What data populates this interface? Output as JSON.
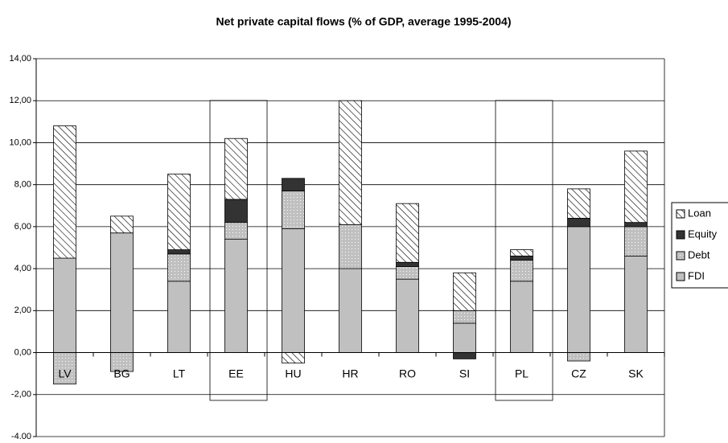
{
  "chart_data": {
    "type": "stacked_bar",
    "title": "Net private capital flows (% of GDP, average 1995-2004)",
    "categories": [
      "LV",
      "BG",
      "LT",
      "EE",
      "HU",
      "HR",
      "RO",
      "SI",
      "PL",
      "CZ",
      "SK"
    ],
    "series": [
      {
        "name": "FDI",
        "color": "#c0c0c0",
        "pattern": "solid",
        "values": [
          4.5,
          5.7,
          3.4,
          5.4,
          5.9,
          4.0,
          3.5,
          1.4,
          3.4,
          6.0,
          4.6
        ]
      },
      {
        "name": "Debt",
        "color": "#c0c0c0",
        "pattern": "dots",
        "values": [
          -1.5,
          -0.9,
          1.3,
          0.8,
          1.8,
          2.1,
          0.6,
          0.6,
          1.0,
          -0.4,
          1.4
        ]
      },
      {
        "name": "Equity",
        "color": "#333333",
        "pattern": "solid",
        "values": [
          0,
          0,
          0.2,
          1.1,
          0.6,
          0,
          0.2,
          -0.3,
          0.2,
          0.4,
          0.2
        ]
      },
      {
        "name": "Loan",
        "color": "#ffffff",
        "pattern": "hatch",
        "values": [
          6.3,
          0.8,
          3.6,
          2.9,
          -0.5,
          5.9,
          2.8,
          1.8,
          0.3,
          1.4,
          3.4
        ]
      }
    ],
    "ylim": [
      -4,
      14
    ],
    "yticks": [
      {
        "value": -4,
        "label": "-4,00"
      },
      {
        "value": -2,
        "label": "-2,00"
      },
      {
        "value": 0,
        "label": "0,00"
      },
      {
        "value": 2,
        "label": "2,00"
      },
      {
        "value": 4,
        "label": "4,00"
      },
      {
        "value": 6,
        "label": "6,00"
      },
      {
        "value": 8,
        "label": "8,00"
      },
      {
        "value": 10,
        "label": "10,00"
      },
      {
        "value": 12,
        "label": "12,00"
      },
      {
        "value": 14,
        "label": "14,00"
      }
    ],
    "grid": true,
    "legend": "right"
  }
}
